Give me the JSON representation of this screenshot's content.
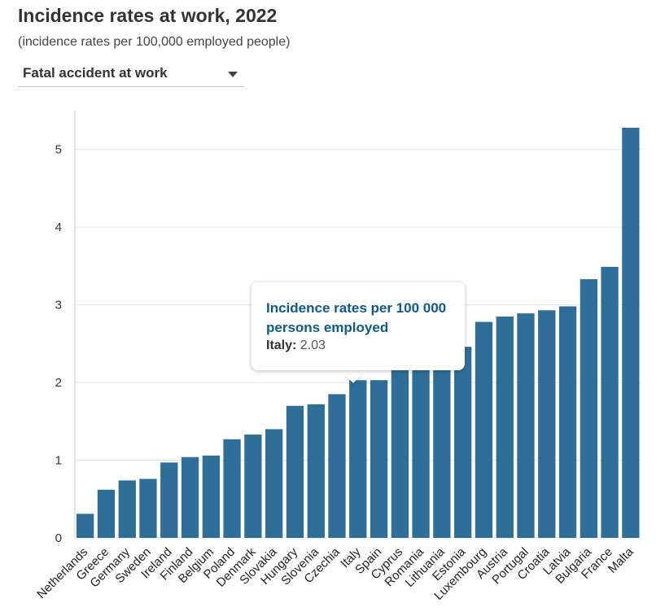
{
  "header": {
    "title": "Incidence rates at work, 2022",
    "subtitle": "(incidence rates per 100,000 employed people)"
  },
  "selector": {
    "selected": "Fatal accident at work"
  },
  "tooltip": {
    "title": "Incidence rates per 100 000 persons employed",
    "country": "Italy:",
    "value": "2.03"
  },
  "colors": {
    "bar": "#2e6e98",
    "grid": "#e6e6e6",
    "axis": "#cccccc"
  },
  "chart_data": {
    "type": "bar",
    "title": "Incidence rates at work, 2022",
    "xlabel": "",
    "ylabel": "",
    "ylim": [
      0,
      5.5
    ],
    "yticks": [
      0,
      1,
      2,
      3,
      4,
      5
    ],
    "categories": [
      "Netherlands",
      "Greece",
      "Germany",
      "Sweden",
      "Ireland",
      "Finland",
      "Belgium",
      "Poland",
      "Denmark",
      "Slovakia",
      "Hungary",
      "Slovenia",
      "Czechia",
      "Italy",
      "Spain",
      "Cyprus",
      "Romania",
      "Lithuania",
      "Estonia",
      "Luxembourg",
      "Austria",
      "Portugal",
      "Croatia",
      "Latvia",
      "Bulgaria",
      "France",
      "Malta"
    ],
    "values": [
      0.31,
      0.62,
      0.74,
      0.76,
      0.97,
      1.04,
      1.06,
      1.27,
      1.33,
      1.4,
      1.7,
      1.72,
      1.85,
      2.03,
      2.03,
      2.2,
      2.25,
      2.33,
      2.46,
      2.78,
      2.85,
      2.89,
      2.93,
      2.98,
      3.33,
      3.49,
      5.28
    ]
  }
}
